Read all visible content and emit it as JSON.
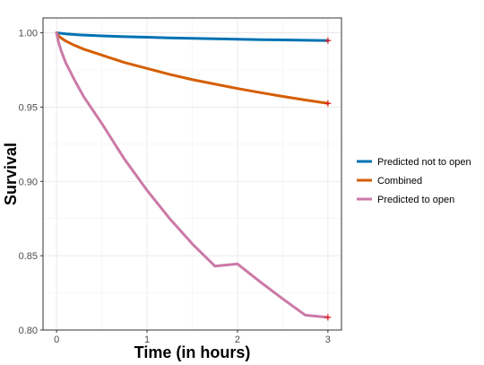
{
  "chart_data": {
    "type": "line",
    "title": "",
    "xlabel": "Time (in hours)",
    "ylabel": "Survival",
    "xlim": [
      -0.15,
      3.15
    ],
    "ylim": [
      0.8,
      1.01
    ],
    "x_ticks": [
      0,
      1,
      2,
      3
    ],
    "y_ticks": [
      0.8,
      0.85,
      0.9,
      0.95,
      1.0
    ],
    "x_tick_labels": [
      "0",
      "1",
      "2",
      "3"
    ],
    "y_tick_labels": [
      "0.80",
      "0.85",
      "0.90",
      "0.95",
      "1.00"
    ],
    "grid": true,
    "legend_position": "right",
    "censor_marker": "+",
    "censor_color": "#e41a1c",
    "series": [
      {
        "name": "Predicted not to open",
        "color": "#0072b2",
        "x": [
          0,
          0.1,
          0.25,
          0.5,
          0.75,
          1.0,
          1.25,
          1.5,
          1.75,
          2.0,
          2.25,
          2.5,
          2.75,
          3.0
        ],
        "y": [
          1.0,
          0.9993,
          0.9986,
          0.9979,
          0.9974,
          0.997,
          0.9966,
          0.9963,
          0.996,
          0.9957,
          0.9954,
          0.9952,
          0.995,
          0.9948
        ]
      },
      {
        "name": "Combined",
        "color": "#d55e00",
        "x": [
          0,
          0.02,
          0.05,
          0.1,
          0.2,
          0.3,
          0.5,
          0.75,
          1.0,
          1.25,
          1.5,
          1.75,
          2.0,
          2.25,
          2.5,
          2.75,
          3.0
        ],
        "y": [
          1.0,
          0.998,
          0.9965,
          0.9945,
          0.9915,
          0.989,
          0.985,
          0.98,
          0.976,
          0.972,
          0.9685,
          0.9655,
          0.9625,
          0.9598,
          0.9572,
          0.9548,
          0.9525
        ]
      },
      {
        "name": "Predicted to open",
        "color": "#cc79a7",
        "x": [
          0,
          0.02,
          0.05,
          0.1,
          0.2,
          0.3,
          0.5,
          0.75,
          1.0,
          1.25,
          1.5,
          1.75,
          2.0,
          2.25,
          2.5,
          2.75,
          3.0
        ],
        "y": [
          1.0,
          0.994,
          0.988,
          0.98,
          0.968,
          0.957,
          0.939,
          0.915,
          0.894,
          0.875,
          0.858,
          0.843,
          0.8445,
          0.8325,
          0.821,
          0.81,
          0.8085
        ]
      }
    ]
  }
}
